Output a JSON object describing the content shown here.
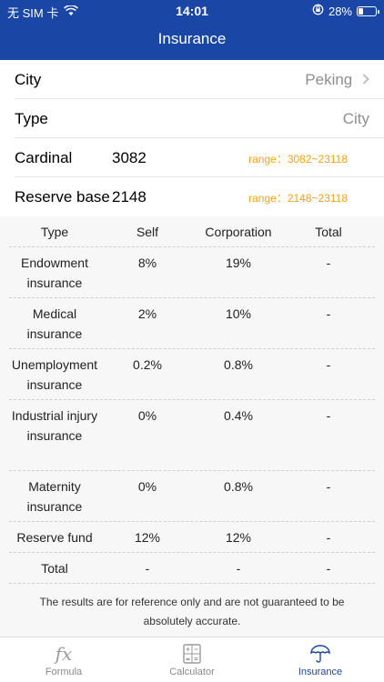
{
  "status_bar": {
    "carrier": "无 SIM 卡",
    "time": "14:01",
    "battery": "28%",
    "battery_level": 0.28,
    "icons": [
      "wifi-icon",
      "orientation-lock-icon",
      "battery-icon"
    ]
  },
  "nav": {
    "title": "Insurance"
  },
  "form": {
    "city_label": "City",
    "city_value": "Peking",
    "type_label": "Type",
    "type_value": "City",
    "cardinal_label": "Cardinal",
    "cardinal_value": "3082",
    "cardinal_range": "range：3082~23118",
    "reserve_label": "Reserve base",
    "reserve_value": "2148",
    "reserve_range": "range：2148~23118"
  },
  "table": {
    "headers": [
      "Type",
      "Self",
      "Corporation",
      "Total"
    ],
    "rows": [
      {
        "type": "Endowment insurance",
        "self": "8%",
        "corp": "19%",
        "total": "-"
      },
      {
        "type": "Medical insurance",
        "self": "2%",
        "corp": "10%",
        "total": "-"
      },
      {
        "type": "Unemployment insurance",
        "self": "0.2%",
        "corp": "0.8%",
        "total": "-"
      },
      {
        "type": "Industrial injury insurance",
        "self": "0%",
        "corp": "0.4%",
        "total": "-"
      },
      {
        "type": "Maternity insurance",
        "self": "0%",
        "corp": "0.8%",
        "total": "-"
      },
      {
        "type": "Reserve fund",
        "self": "12%",
        "corp": "12%",
        "total": "-"
      },
      {
        "type": "Total",
        "self": "-",
        "corp": "-",
        "total": "-"
      }
    ]
  },
  "note": "The results are for reference only and are not guaranteed to be absolutely accurate.",
  "tabs": [
    {
      "label": "Formula",
      "icon": "formula-icon",
      "active": false
    },
    {
      "label": "Calculator",
      "icon": "calculator-icon",
      "active": false
    },
    {
      "label": "Insurance",
      "icon": "umbrella-icon",
      "active": true
    }
  ],
  "colors": {
    "primary": "#1a46a5",
    "range": "#f5a11a",
    "muted": "#8e8e93"
  }
}
